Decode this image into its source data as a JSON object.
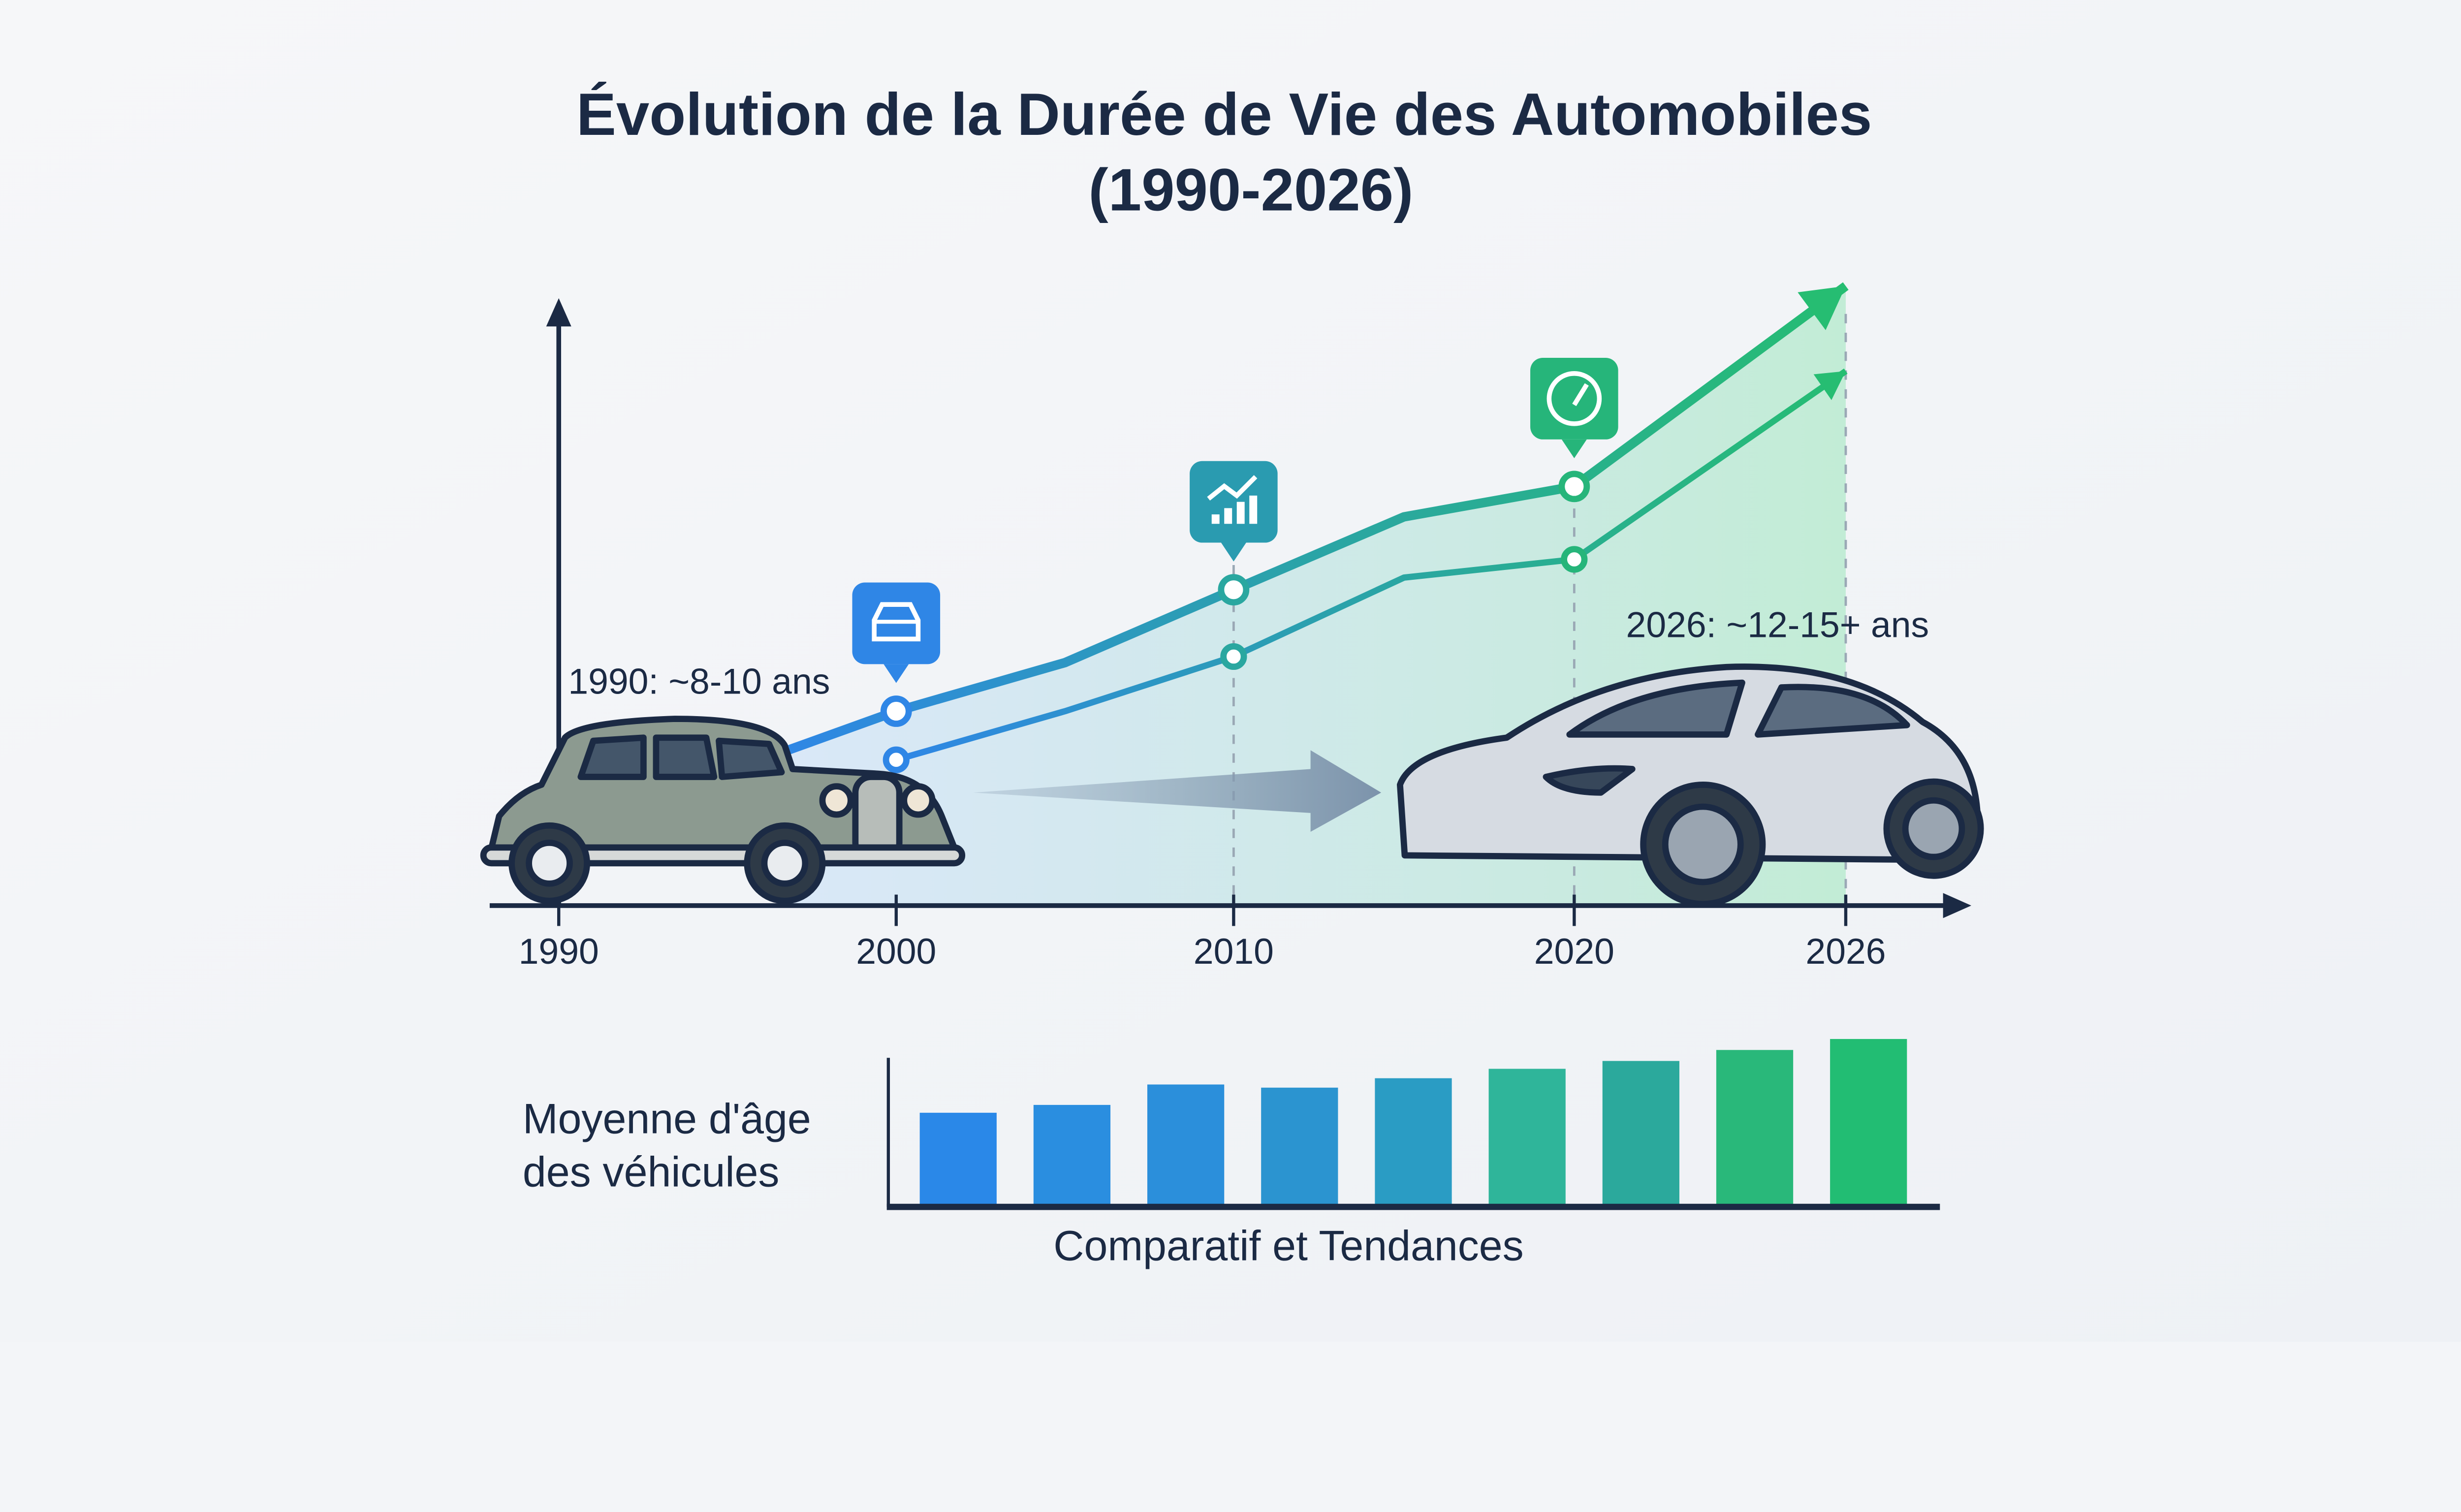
{
  "title_line1": "Évolution de la Durée de Vie des Automobiles",
  "title_line2": "(1990-2026)",
  "colors": {
    "blue": "#2f86e6",
    "teal": "#2aa7a0",
    "green": "#26bd72",
    "axis": "#1b2a44",
    "background": "#f3f5f8"
  },
  "annotations": {
    "start": "1990: ~8-10 ans",
    "end": "2026: ~12-15+ ans"
  },
  "icons": [
    {
      "year": 2000,
      "name": "car-icon",
      "color": "#2f86e6"
    },
    {
      "year": 2010,
      "name": "trend-chart-icon",
      "color": "#2a9bb0"
    },
    {
      "year": 2020,
      "name": "speedometer-icon",
      "color": "#26b57a"
    }
  ],
  "images": {
    "old_car": "vintage-car",
    "new_car": "modern-electric-sedan"
  },
  "chart_data": [
    {
      "type": "line",
      "x_ticks": [
        1990,
        2000,
        2010,
        2020,
        2026
      ],
      "y_ticks": [],
      "grid": false,
      "ylim_note": "unlabelled relative scale",
      "series": [
        {
          "x": [
            1996.5,
            2000,
            2005,
            2010,
            2015,
            2020,
            2026
          ],
          "y": [
            25,
            32,
            40,
            52,
            64,
            69,
            102
          ],
          "markers_at": [
            2000,
            2010,
            2020
          ]
        },
        {
          "x": [
            2000,
            2005,
            2010,
            2015,
            2020,
            2026
          ],
          "y": [
            24,
            32,
            41,
            54,
            57,
            88
          ],
          "markers_at": [
            2000,
            2010,
            2020
          ]
        }
      ]
    },
    {
      "type": "bar",
      "ylabel": "Moyenne d'âge des véhicules",
      "xlabel": "Comparatif et Tendances",
      "values": [
        60,
        65,
        78,
        76,
        82,
        88,
        93,
        100,
        107
      ],
      "colors": [
        "#2a88e8",
        "#2a8ee0",
        "#2b8fdb",
        "#2b94d0",
        "#2a9cc4",
        "#2fb59a",
        "#2ba99c",
        "#29b87a",
        "#22bd73"
      ]
    }
  ]
}
